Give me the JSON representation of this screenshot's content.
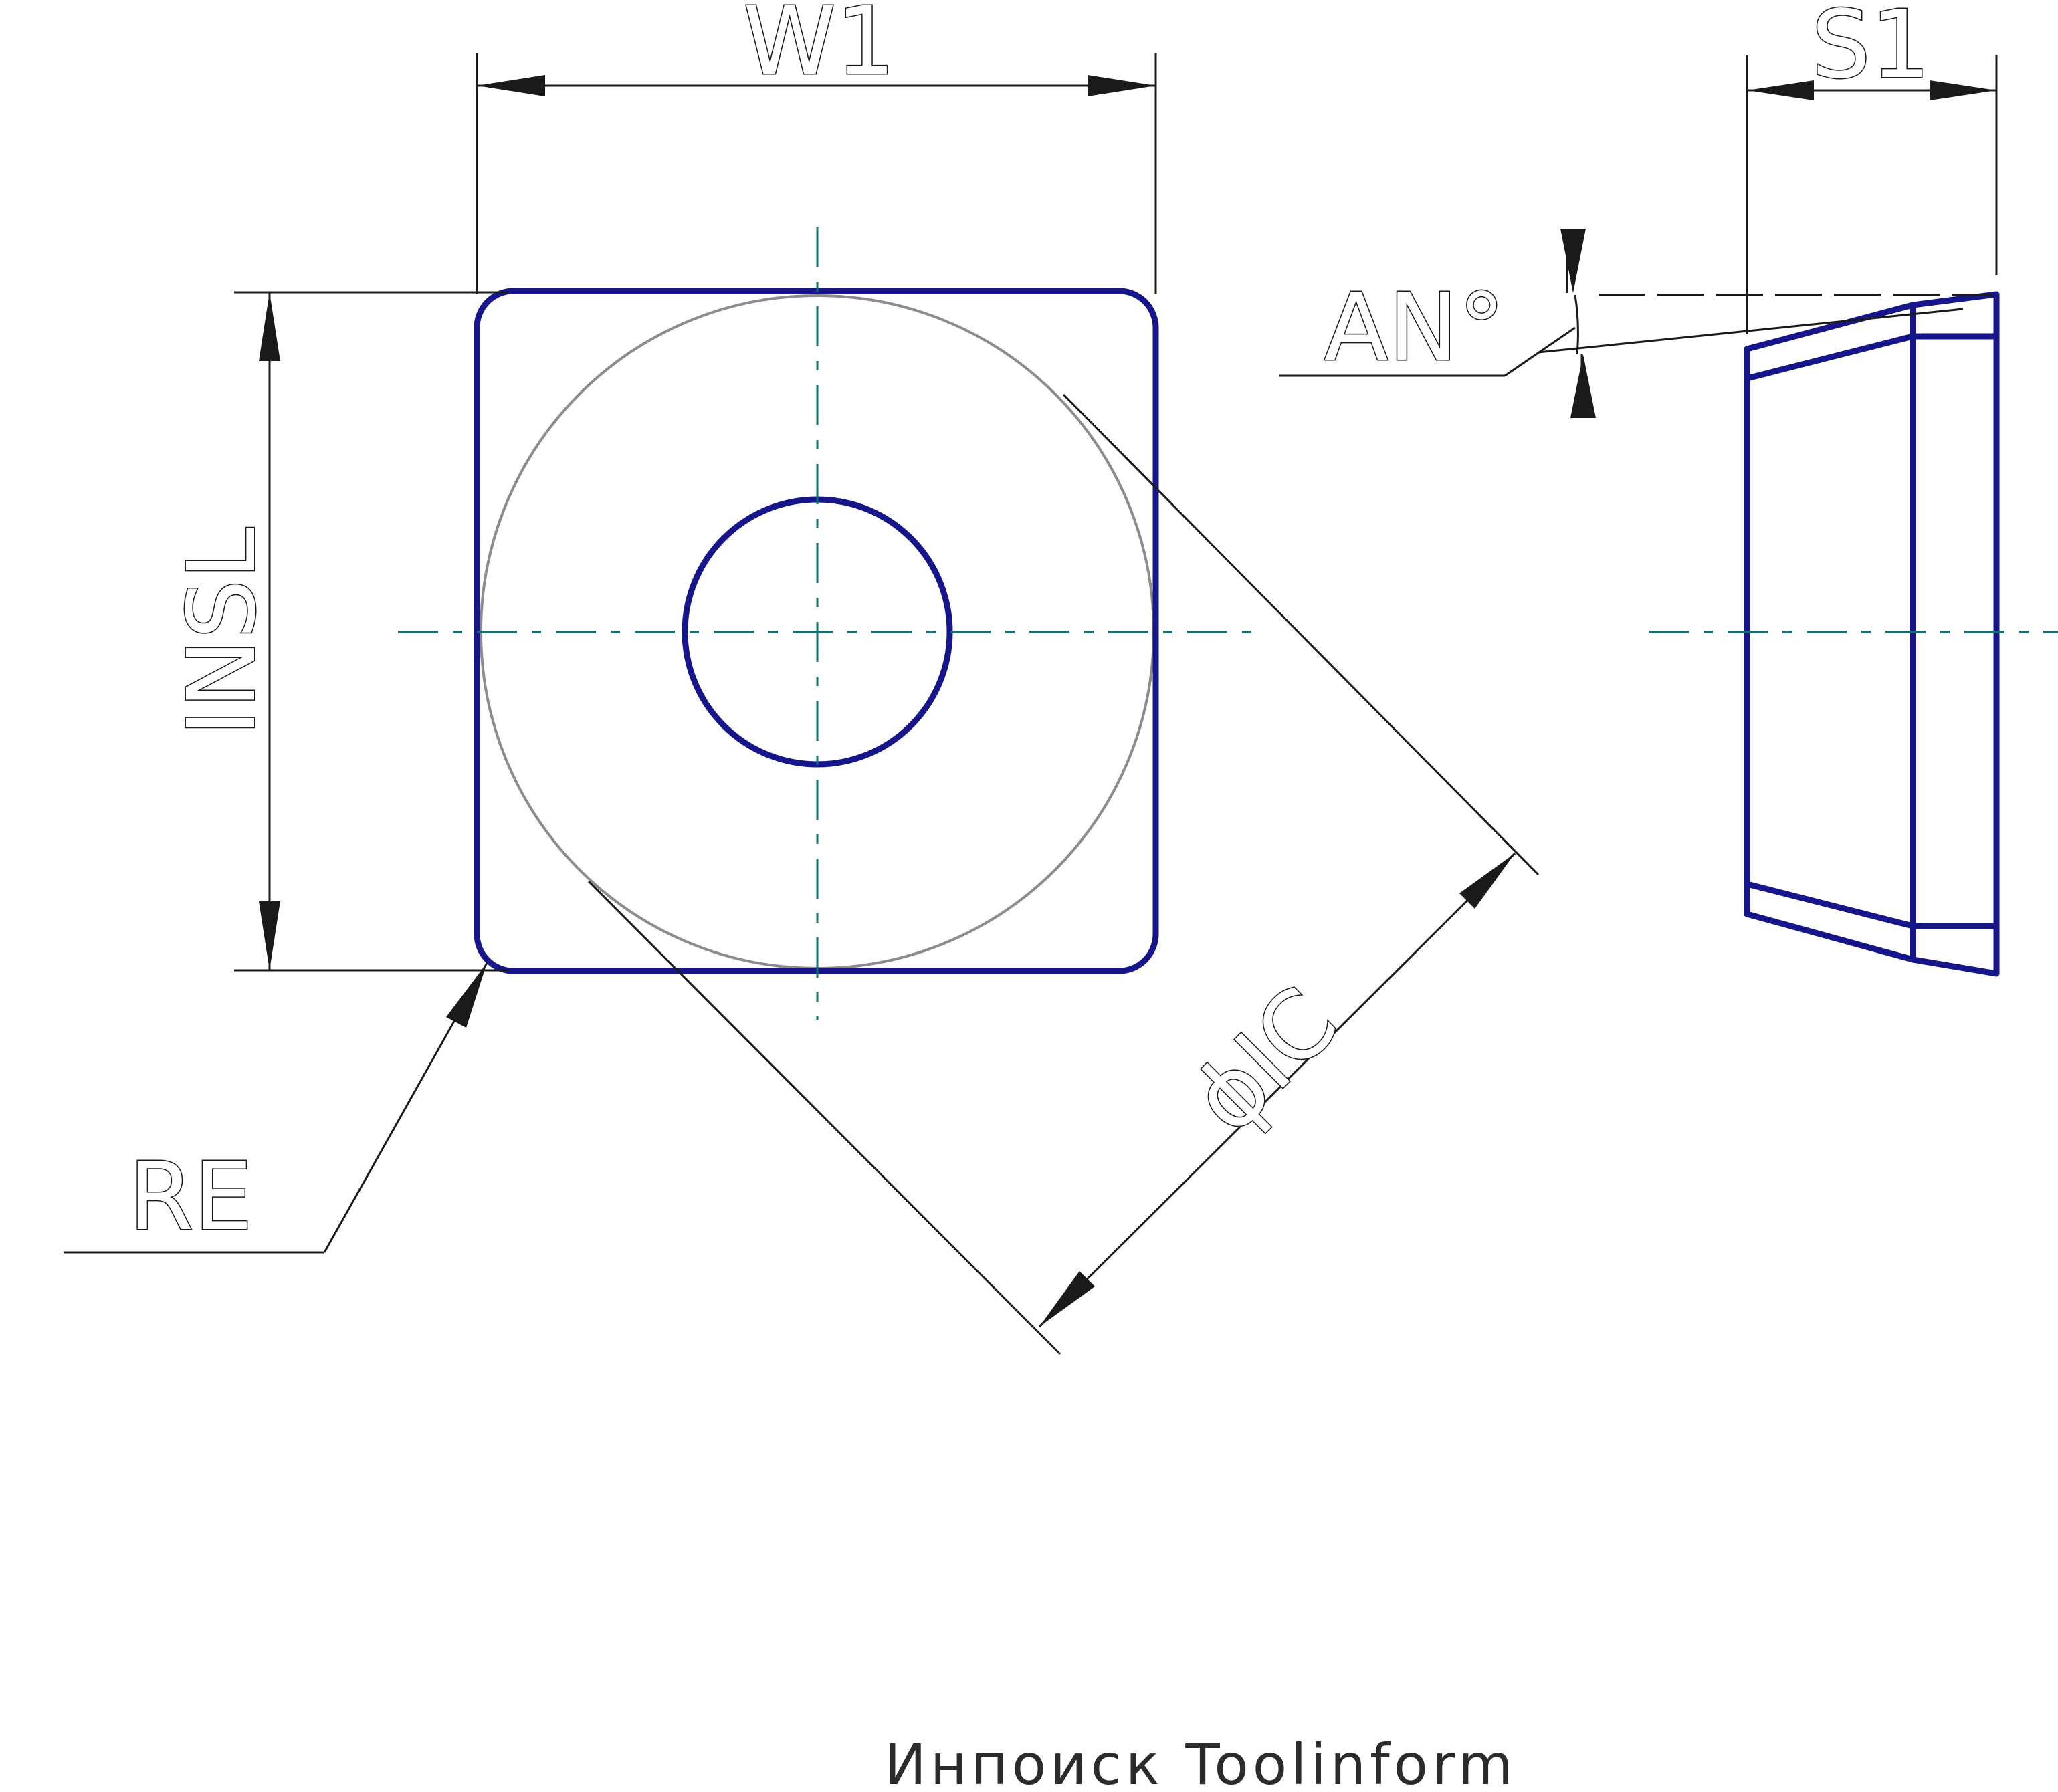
{
  "labels": {
    "w1": "W1",
    "s1": "S1",
    "an": "AN°",
    "insl": "INSL",
    "ic": "ϕIC",
    "re": "RE"
  },
  "watermark": "Инпоиск Toolinform",
  "colors": {
    "outline": "#16168a",
    "centerline": "#0e7070",
    "dimension": "#1a1a1a",
    "inscribed_circle": "#8c8c8c",
    "background": "#ffffff"
  }
}
